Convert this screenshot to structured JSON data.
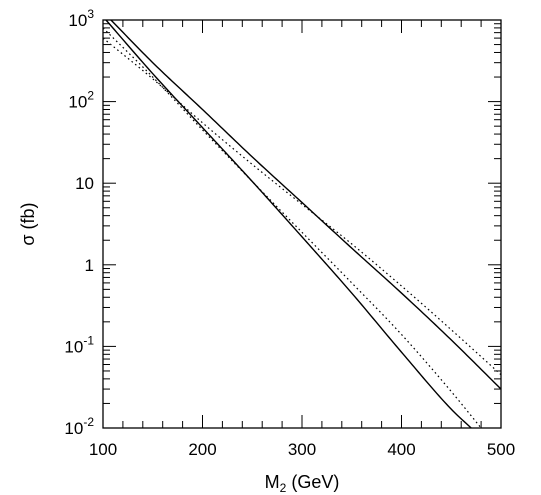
{
  "chart_data": {
    "type": "line",
    "title": "",
    "xlabel": {
      "base": "M",
      "sub": "2",
      "rest": " (GeV)"
    },
    "ylabel": "σ (fb)",
    "xlim": [
      100,
      500
    ],
    "ylim": [
      0.01,
      1000
    ],
    "yscale": "log",
    "grid": false,
    "legend": "none",
    "x_ticks": [
      100,
      200,
      300,
      400,
      500
    ],
    "x_tick_labels": [
      "100",
      "200",
      "300",
      "400",
      "500"
    ],
    "y_ticks": [
      {
        "value": 0.01,
        "base": "10",
        "exp": "-2"
      },
      {
        "value": 0.1,
        "base": "10",
        "exp": "-1"
      },
      {
        "value": 1,
        "base": "1",
        "exp": ""
      },
      {
        "value": 10,
        "base": "10",
        "exp": ""
      },
      {
        "value": 100,
        "base": "10",
        "exp": "2"
      },
      {
        "value": 1000,
        "base": "10",
        "exp": "3"
      }
    ],
    "series": [
      {
        "style": "solid",
        "x": [
          108,
          150,
          200,
          250,
          300,
          350,
          400,
          450,
          500
        ],
        "y": [
          1000,
          300,
          80,
          21,
          5.8,
          1.6,
          0.45,
          0.12,
          0.03
        ]
      },
      {
        "style": "solid",
        "x": [
          103,
          150,
          200,
          250,
          300,
          350,
          400,
          450,
          470
        ],
        "y": [
          1000,
          220,
          48,
          10.5,
          2.2,
          0.45,
          0.085,
          0.017,
          0.01
        ]
      },
      {
        "style": "dotted",
        "x": [
          100,
          150,
          200,
          250,
          300,
          350,
          400,
          450,
          500
        ],
        "y": [
          600,
          190,
          55,
          17,
          5.5,
          1.8,
          0.55,
          0.16,
          0.045
        ]
      },
      {
        "style": "dotted",
        "x": [
          100,
          150,
          200,
          250,
          300,
          350,
          400,
          450,
          480
        ],
        "y": [
          800,
          200,
          45,
          10.5,
          2.5,
          0.6,
          0.14,
          0.028,
          0.01
        ]
      }
    ]
  }
}
